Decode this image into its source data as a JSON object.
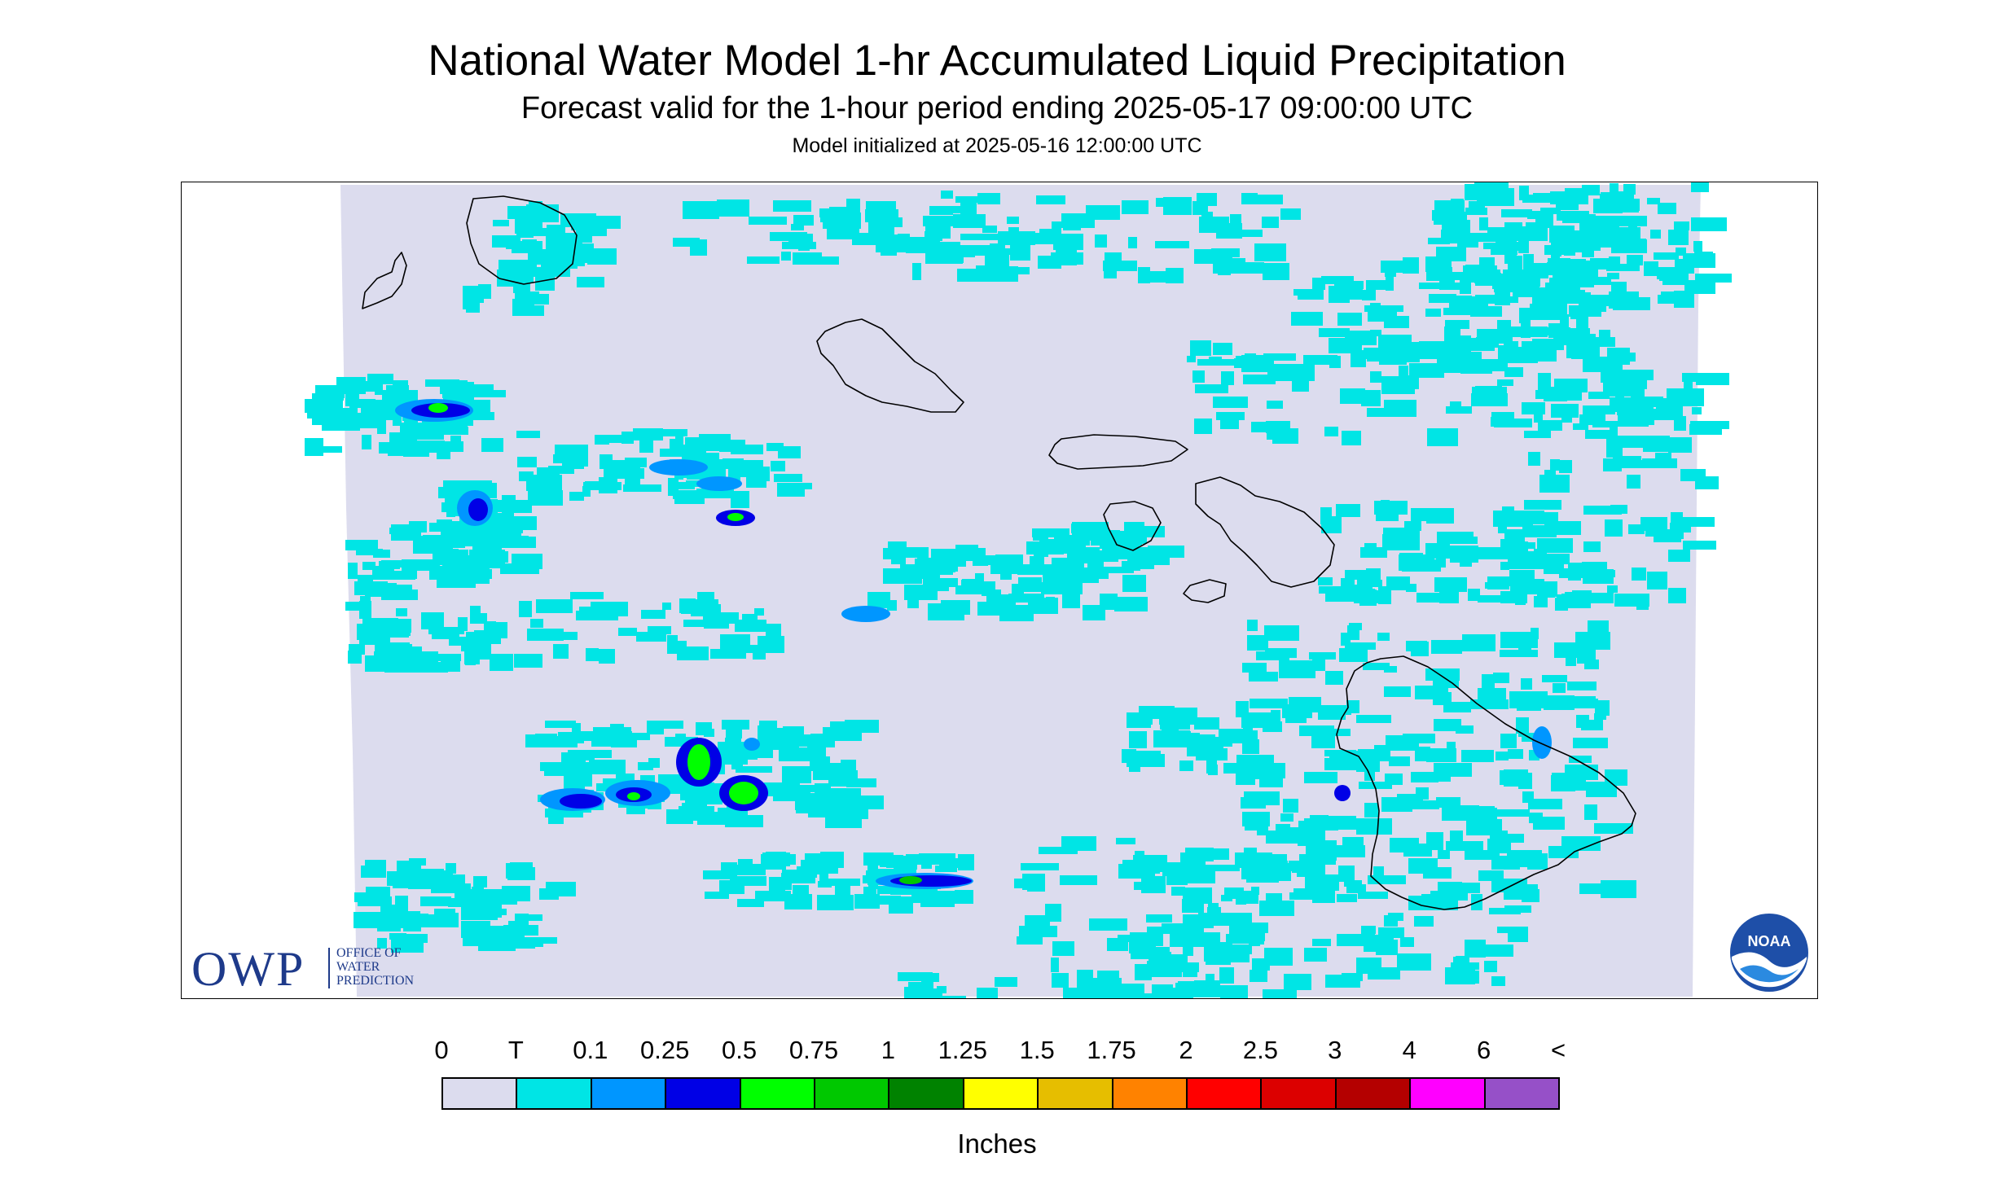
{
  "title": "National Water Model 1-hr Accumulated Liquid Precipitation",
  "subtitle": "Forecast valid for the 1-hour period ending 2025-05-17 09:00:00 UTC",
  "init_text": "Model initialized at 2025-05-16 12:00:00 UTC",
  "owp_logo": {
    "letters": "OWP",
    "lines": [
      "OFFICE OF",
      "WATER",
      "PREDICTION"
    ],
    "color": "#1e3a8a"
  },
  "noaa_logo": {
    "text": "NOAA",
    "icon": "noaa-logo-icon"
  },
  "legend": {
    "unit": "Inches",
    "tick_labels": [
      "0",
      "T",
      "0.1",
      "0.25",
      "0.5",
      "0.75",
      "1",
      "1.25",
      "1.5",
      "1.75",
      "2",
      "2.5",
      "3",
      "4",
      "6",
      "<"
    ],
    "colors": [
      "#dcdcee",
      "#00e5e5",
      "#0096ff",
      "#0000e6",
      "#00ff00",
      "#00c800",
      "#008200",
      "#ffff00",
      "#e6be00",
      "#ff8200",
      "#ff0000",
      "#dc0000",
      "#b40000",
      "#ff00ff",
      "#9650c8"
    ]
  },
  "map": {
    "background_color": "#dcdcee",
    "coastline_color": "#000000",
    "islands": [
      "Kauai",
      "Niihau",
      "Oahu",
      "Molokai",
      "Lanai",
      "Maui",
      "Kahoolawe",
      "Hawaii"
    ]
  }
}
